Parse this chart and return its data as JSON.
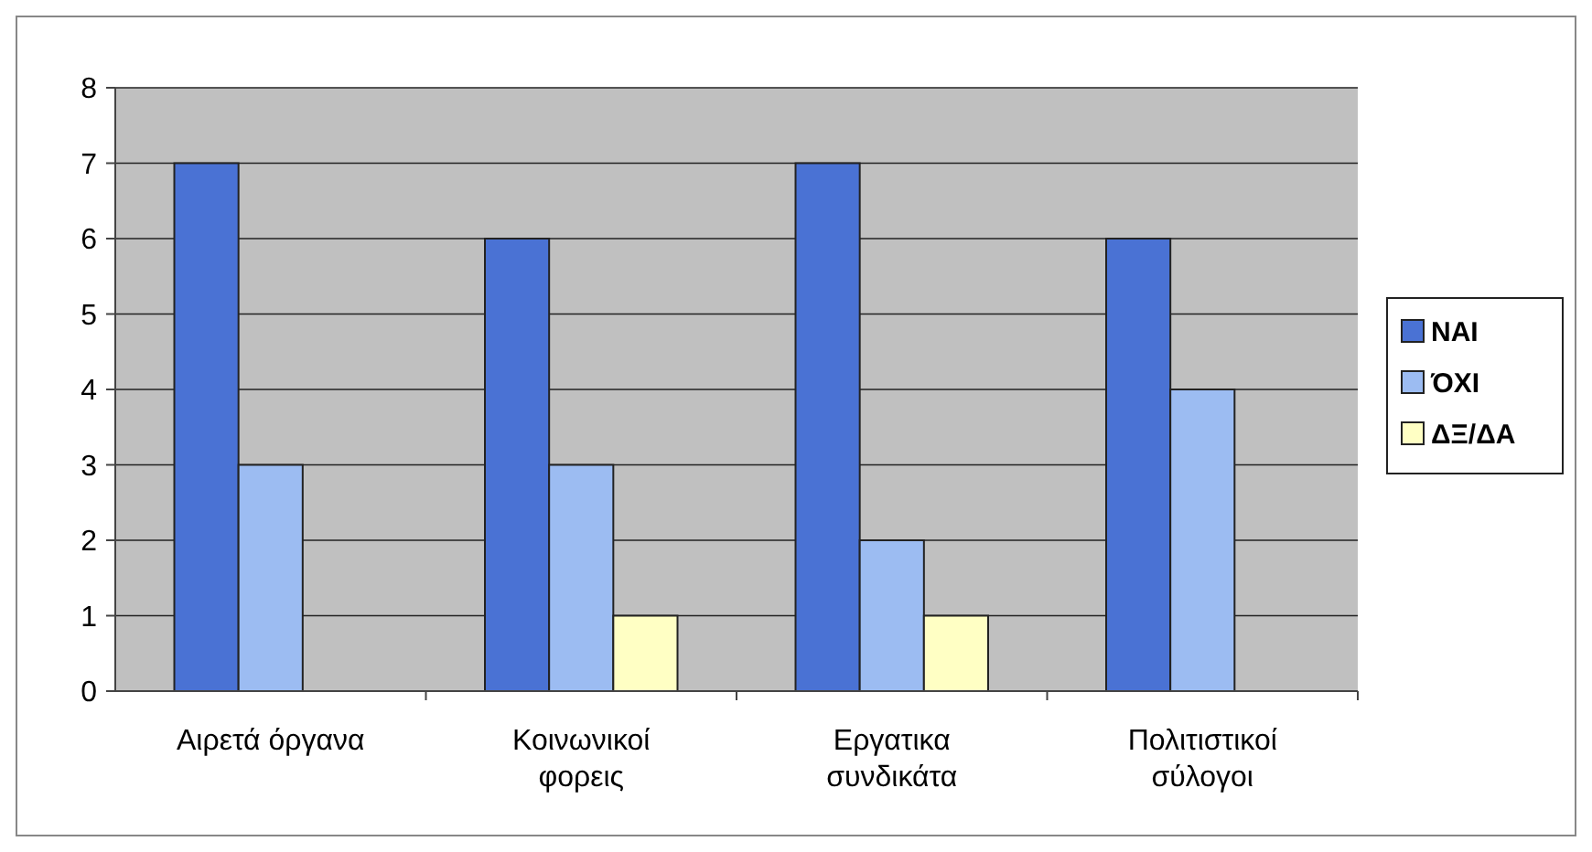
{
  "chart_data": {
    "type": "bar",
    "categories": [
      "Αιρετά όργανα",
      "Κοινωνικοί\nφορεις",
      "Εργατικα\nσυνδικάτα",
      "Πολιτιστικοί\nσύλογοι"
    ],
    "series": [
      {
        "name": "ΝΑΙ",
        "color": "#4a72d4",
        "values": [
          7,
          6,
          7,
          6
        ]
      },
      {
        "name": "ΌΧΙ",
        "color": "#9cbcf2",
        "values": [
          3,
          3,
          2,
          4
        ]
      },
      {
        "name": "ΔΞ/ΔΑ",
        "color": "#ffffc4",
        "values": [
          null,
          1,
          1,
          null
        ]
      }
    ],
    "ylim": [
      0,
      8
    ],
    "yticks": [
      0,
      1,
      2,
      3,
      4,
      5,
      6,
      7,
      8
    ],
    "grid": "y",
    "legend": "right"
  }
}
